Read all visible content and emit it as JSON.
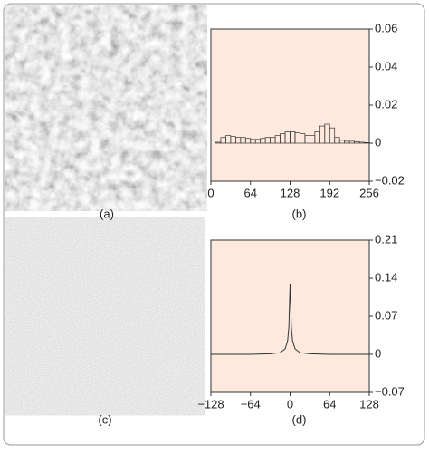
{
  "chart_data": [
    {
      "type": "histogram",
      "caption": "(b)",
      "bins": [
        0,
        8,
        16,
        24,
        32,
        40,
        48,
        56,
        64,
        72,
        80,
        88,
        96,
        104,
        112,
        120,
        128,
        136,
        144,
        152,
        160,
        168,
        176,
        184,
        192,
        200,
        208,
        216,
        224,
        232,
        240,
        248,
        256
      ],
      "values": [
        0,
        0.0005,
        0.003,
        0.004,
        0.0035,
        0.003,
        0.003,
        0.0025,
        0.002,
        0.002,
        0.0025,
        0.003,
        0.003,
        0.004,
        0.005,
        0.006,
        0.006,
        0.0055,
        0.005,
        0.004,
        0.004,
        0.006,
        0.009,
        0.01,
        0.008,
        0.003,
        0.0015,
        0.001,
        0.001,
        0.0008,
        0.0005,
        0.0003
      ],
      "color": "#333333",
      "xlim": [
        0,
        256
      ],
      "xticks": [
        0,
        64,
        128,
        192,
        256
      ],
      "ylim": [
        -0.02,
        0.06
      ],
      "yticks": [
        {
          "value": -0.02,
          "label": "−0.02"
        },
        0,
        0.02,
        0.04,
        0.06
      ]
    },
    {
      "type": "line",
      "caption": "(d)",
      "x": [
        -128,
        -64,
        -32,
        -16,
        -8,
        -4,
        -2,
        -1,
        0,
        1,
        2,
        4,
        8,
        16,
        32,
        64,
        128
      ],
      "values": [
        0,
        0,
        0.001,
        0.003,
        0.01,
        0.025,
        0.05,
        0.09,
        0.13,
        0.09,
        0.05,
        0.025,
        0.01,
        0.003,
        0.001,
        0,
        0
      ],
      "color": "#333333",
      "xlim": [
        -128,
        128
      ],
      "xticks": [
        {
          "value": -128,
          "label": "−128"
        },
        {
          "value": -64,
          "label": "−64"
        },
        0,
        64,
        128
      ],
      "ylim": [
        -0.07,
        0.21
      ],
      "yticks": [
        {
          "value": -0.07,
          "label": "−0.07"
        },
        0,
        0.07,
        0.14,
        0.21
      ]
    }
  ],
  "image_captions": [
    "(a)",
    "(c)"
  ]
}
